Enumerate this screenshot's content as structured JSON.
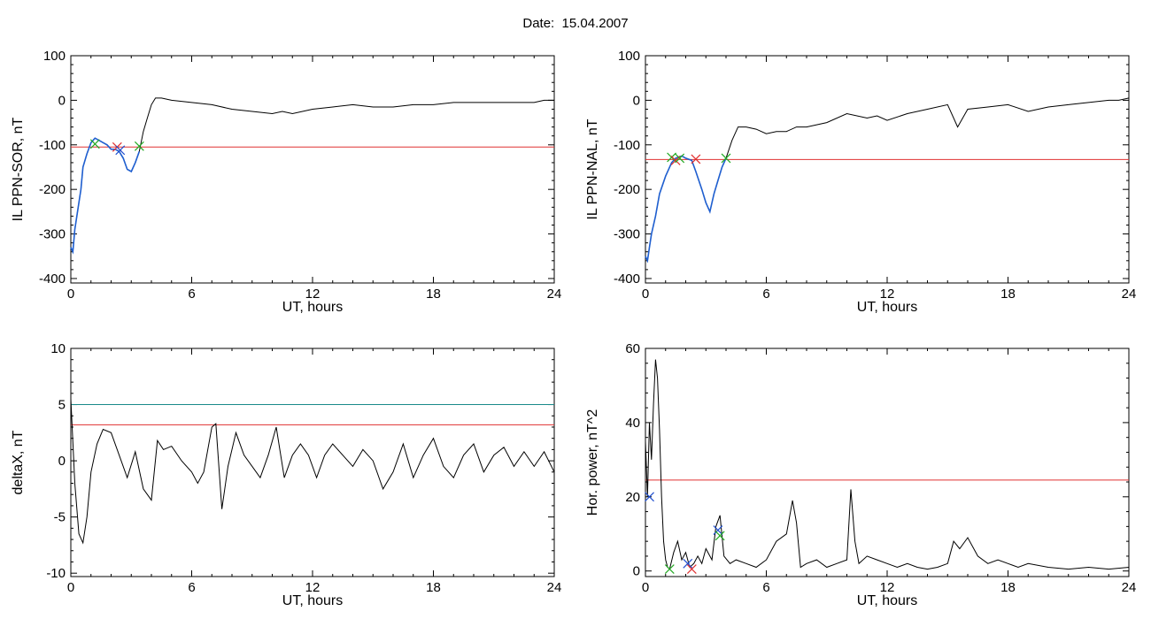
{
  "page": {
    "title": "Date:  15.04.2007"
  },
  "colors": {
    "trace": "#000000",
    "highlight": "#1f5fd0",
    "threshold": "#e03030",
    "threshold2": "#1a8a8a",
    "marker_green": "#22aa22",
    "marker_red": "#e03030",
    "marker_blue": "#2050d0"
  },
  "chart_data": [
    {
      "type": "line",
      "xlabel": "UT, hours",
      "ylabel": "IL PPN-SOR, nT",
      "xlim": [
        0,
        24
      ],
      "ylim": [
        -410,
        100
      ],
      "xticks": [
        0,
        6,
        12,
        18,
        24
      ],
      "yticks": [
        -400,
        -300,
        -200,
        -100,
        0,
        100
      ],
      "xtick_labels": [
        "0",
        "6",
        "12",
        "18",
        "24"
      ],
      "ytick_labels": [
        "-400",
        "-300",
        "-200",
        "-100",
        "0",
        "100"
      ],
      "series": [
        {
          "x": [
            0.0,
            0.1,
            0.2,
            0.3,
            0.4,
            0.5,
            0.6,
            0.8,
            1.0,
            1.2,
            1.4,
            1.6,
            1.8,
            2.0,
            2.2,
            2.4,
            2.6,
            2.8,
            3.0,
            3.2,
            3.4,
            3.6,
            3.8,
            4.0,
            4.2,
            4.5,
            5.0,
            6.0,
            7.0,
            8.0,
            9.0,
            10.0,
            10.5,
            11.0,
            12.0,
            13.0,
            14.0,
            15.0,
            16.0,
            17.0,
            18.0,
            19.0,
            20.0,
            21.0,
            22.0,
            23.0,
            23.5,
            24.0
          ],
          "y": [
            -330,
            -340,
            -290,
            -260,
            -230,
            -200,
            -150,
            -120,
            -95,
            -85,
            -90,
            -95,
            -100,
            -110,
            -110,
            -115,
            -130,
            -155,
            -160,
            -140,
            -115,
            -70,
            -40,
            -10,
            5,
            5,
            0,
            -5,
            -10,
            -20,
            -25,
            -30,
            -25,
            -30,
            -20,
            -15,
            -10,
            -15,
            -15,
            -10,
            -10,
            -5,
            -5,
            -5,
            -5,
            -5,
            0,
            0
          ]
        },
        {
          "x": [
            0.0,
            0.1,
            0.2,
            0.3,
            0.4,
            0.5,
            0.6,
            0.8,
            1.0,
            1.2,
            1.4,
            1.6,
            1.8,
            2.0,
            2.2,
            2.4,
            2.6,
            2.8,
            3.0,
            3.2,
            3.4
          ],
          "y": [
            -330,
            -340,
            -290,
            -260,
            -230,
            -200,
            -150,
            -120,
            -95,
            -85,
            -90,
            -95,
            -100,
            -110,
            -110,
            -115,
            -130,
            -155,
            -160,
            -140,
            -115
          ]
        }
      ],
      "thresholds": [
        {
          "y": -105,
          "color": "red"
        }
      ],
      "markers": [
        {
          "x": 1.2,
          "y": -98,
          "color": "green"
        },
        {
          "x": 2.3,
          "y": -105,
          "color": "red"
        },
        {
          "x": 2.45,
          "y": -112,
          "color": "blue"
        },
        {
          "x": 3.4,
          "y": -103,
          "color": "green"
        }
      ]
    },
    {
      "type": "line",
      "xlabel": "UT, hours",
      "ylabel": "IL PPN-NAL, nT",
      "xlim": [
        0,
        24
      ],
      "ylim": [
        -410,
        100
      ],
      "xticks": [
        0,
        6,
        12,
        18,
        24
      ],
      "yticks": [
        -400,
        -300,
        -200,
        -100,
        0,
        100
      ],
      "xtick_labels": [
        "0",
        "6",
        "12",
        "18",
        "24"
      ],
      "ytick_labels": [
        "-400",
        "-300",
        "-200",
        "-100",
        "0",
        "100"
      ],
      "series": [
        {
          "x": [
            0.0,
            0.1,
            0.2,
            0.3,
            0.5,
            0.7,
            1.0,
            1.3,
            1.5,
            1.8,
            2.0,
            2.3,
            2.5,
            2.8,
            3.0,
            3.2,
            3.4,
            3.6,
            3.8,
            4.0,
            4.3,
            4.6,
            5.0,
            5.5,
            6.0,
            6.5,
            7.0,
            7.5,
            8.0,
            9.0,
            10.0,
            11.0,
            11.5,
            12.0,
            13.0,
            14.0,
            15.0,
            15.5,
            16.0,
            17.0,
            18.0,
            19.0,
            20.0,
            21.0,
            22.0,
            23.0,
            23.5,
            24.0
          ],
          "y": [
            -350,
            -360,
            -330,
            -300,
            -260,
            -210,
            -170,
            -140,
            -130,
            -125,
            -130,
            -135,
            -160,
            -200,
            -230,
            -250,
            -210,
            -180,
            -150,
            -130,
            -90,
            -60,
            -60,
            -65,
            -75,
            -70,
            -70,
            -60,
            -60,
            -50,
            -30,
            -40,
            -35,
            -45,
            -30,
            -20,
            -10,
            -60,
            -20,
            -15,
            -10,
            -25,
            -15,
            -10,
            -5,
            0,
            0,
            5
          ]
        },
        {
          "x": [
            0.0,
            0.1,
            0.2,
            0.3,
            0.5,
            0.7,
            1.0,
            1.3,
            1.5,
            1.8,
            2.0,
            2.3,
            2.5,
            2.8,
            3.0,
            3.2,
            3.4,
            3.6,
            3.8,
            4.0
          ],
          "y": [
            -350,
            -360,
            -330,
            -300,
            -260,
            -210,
            -170,
            -140,
            -130,
            -125,
            -130,
            -135,
            -160,
            -200,
            -230,
            -250,
            -210,
            -180,
            -150,
            -130
          ]
        }
      ],
      "thresholds": [
        {
          "y": -133,
          "color": "red"
        }
      ],
      "markers": [
        {
          "x": 1.3,
          "y": -128,
          "color": "green"
        },
        {
          "x": 1.5,
          "y": -135,
          "color": "red"
        },
        {
          "x": 1.7,
          "y": -130,
          "color": "green"
        },
        {
          "x": 2.5,
          "y": -132,
          "color": "red"
        },
        {
          "x": 4.0,
          "y": -130,
          "color": "green"
        }
      ]
    },
    {
      "type": "line",
      "xlabel": "UT, hours",
      "ylabel": "deltaX, nT",
      "xlim": [
        0,
        24
      ],
      "ylim": [
        -10.3,
        10
      ],
      "xticks": [
        0,
        6,
        12,
        18,
        24
      ],
      "yticks": [
        -10,
        -5,
        0,
        5,
        10
      ],
      "xtick_labels": [
        "0",
        "6",
        "12",
        "18",
        "24"
      ],
      "ytick_labels": [
        "-10",
        "-5",
        "0",
        "5",
        "10"
      ],
      "series": [
        {
          "x": [
            0.0,
            0.2,
            0.4,
            0.6,
            0.8,
            1.0,
            1.3,
            1.6,
            2.0,
            2.4,
            2.8,
            3.2,
            3.6,
            4.0,
            4.3,
            4.6,
            5.0,
            5.5,
            6.0,
            6.3,
            6.6,
            7.0,
            7.2,
            7.5,
            7.8,
            8.2,
            8.6,
            9.0,
            9.4,
            9.8,
            10.2,
            10.6,
            11.0,
            11.4,
            11.8,
            12.2,
            12.6,
            13.0,
            13.5,
            14.0,
            14.5,
            15.0,
            15.5,
            16.0,
            16.5,
            17.0,
            17.5,
            18.0,
            18.5,
            19.0,
            19.5,
            20.0,
            20.5,
            21.0,
            21.5,
            22.0,
            22.5,
            23.0,
            23.5,
            24.0
          ],
          "y": [
            5.5,
            -2.0,
            -6.5,
            -7.3,
            -5.0,
            -1.0,
            1.5,
            2.8,
            2.5,
            0.5,
            -1.5,
            0.8,
            -2.5,
            -3.5,
            1.8,
            1.0,
            1.3,
            0.0,
            -1.0,
            -2.0,
            -1.0,
            3.0,
            3.3,
            -4.3,
            -0.5,
            2.5,
            0.5,
            -0.5,
            -1.5,
            0.5,
            3.0,
            -1.5,
            0.5,
            1.5,
            0.5,
            -1.5,
            0.5,
            1.5,
            0.5,
            -0.5,
            1.0,
            0.0,
            -2.5,
            -1.0,
            1.5,
            -1.5,
            0.5,
            2.0,
            -0.5,
            -1.5,
            0.5,
            1.5,
            -1.0,
            0.5,
            1.2,
            -0.5,
            0.8,
            -0.5,
            0.8,
            -1.0
          ]
        }
      ],
      "thresholds": [
        {
          "y": 5.0,
          "color": "teal"
        },
        {
          "y": 3.2,
          "color": "red"
        }
      ],
      "markers": []
    },
    {
      "type": "line",
      "xlabel": "UT, hours",
      "ylabel": "Hor. power, nT^2",
      "xlim": [
        0,
        24
      ],
      "ylim": [
        -1.5,
        60
      ],
      "xticks": [
        0,
        6,
        12,
        18,
        24
      ],
      "yticks": [
        0,
        20,
        40,
        60
      ],
      "xtick_labels": [
        "0",
        "6",
        "12",
        "18",
        "24"
      ],
      "ytick_labels": [
        "0",
        "20",
        "40",
        "60"
      ],
      "series": [
        {
          "x": [
            0.0,
            0.1,
            0.2,
            0.3,
            0.4,
            0.5,
            0.6,
            0.7,
            0.8,
            0.9,
            1.0,
            1.1,
            1.2,
            1.4,
            1.6,
            1.8,
            2.0,
            2.2,
            2.4,
            2.6,
            2.8,
            3.0,
            3.3,
            3.5,
            3.7,
            3.9,
            4.2,
            4.5,
            5.0,
            5.5,
            6.0,
            6.5,
            7.0,
            7.3,
            7.5,
            7.7,
            8.0,
            8.5,
            9.0,
            9.5,
            10.0,
            10.2,
            10.4,
            10.6,
            11.0,
            11.5,
            12.0,
            12.5,
            13.0,
            13.5,
            14.0,
            14.5,
            15.0,
            15.3,
            15.6,
            16.0,
            16.5,
            17.0,
            17.5,
            18.0,
            18.5,
            19.0,
            20.0,
            21.0,
            22.0,
            23.0,
            24.0
          ],
          "y": [
            35,
            20,
            40,
            30,
            45,
            57,
            52,
            38,
            20,
            8,
            3,
            1,
            0.5,
            5,
            8,
            3,
            5,
            1,
            2,
            4,
            2,
            6,
            3,
            12,
            15,
            4,
            2,
            3,
            2,
            1,
            3,
            8,
            10,
            19,
            13,
            1,
            2,
            3,
            1,
            2,
            3,
            22,
            8,
            2,
            4,
            3,
            2,
            1,
            2,
            1,
            0.5,
            1,
            2,
            8,
            6,
            9,
            4,
            2,
            3,
            2,
            1,
            2,
            1,
            0.5,
            1,
            0.5,
            1
          ]
        }
      ],
      "thresholds": [
        {
          "y": 24.5,
          "color": "red"
        }
      ],
      "markers": [
        {
          "x": 0.2,
          "y": 20,
          "color": "blue"
        },
        {
          "x": 1.2,
          "y": 0.5,
          "color": "green"
        },
        {
          "x": 2.1,
          "y": 2.0,
          "color": "blue"
        },
        {
          "x": 2.3,
          "y": 0.5,
          "color": "red"
        },
        {
          "x": 3.6,
          "y": 11.0,
          "color": "blue"
        },
        {
          "x": 3.7,
          "y": 9.5,
          "color": "green"
        }
      ]
    }
  ]
}
